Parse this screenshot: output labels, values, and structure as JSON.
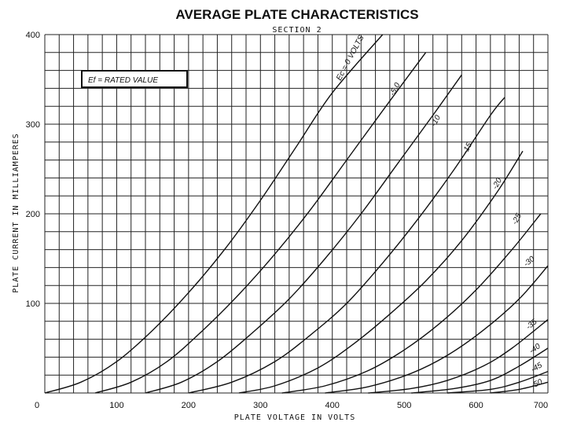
{
  "chart_data": {
    "type": "line",
    "title": "AVERAGE PLATE CHARACTERISTICS",
    "subtitle": "SECTION 2",
    "xlabel": "PLATE VOLTAGE IN VOLTS",
    "ylabel": "PLATE CURRENT IN MILLIAMPERES",
    "xlim": [
      0,
      700
    ],
    "ylim": [
      0,
      400
    ],
    "x_ticks": [
      "0",
      "100",
      "200",
      "300",
      "400",
      "500",
      "600",
      "700"
    ],
    "y_ticks": [
      "100",
      "200",
      "300",
      "400"
    ],
    "grid": true,
    "annotation": "Ef = RATED VALUE",
    "series": [
      {
        "name": "Ec = 0 VOLTS",
        "points": [
          [
            0,
            0
          ],
          [
            50,
            12
          ],
          [
            100,
            35
          ],
          [
            150,
            70
          ],
          [
            200,
            112
          ],
          [
            250,
            160
          ],
          [
            300,
            215
          ],
          [
            350,
            275
          ],
          [
            400,
            335
          ],
          [
            470,
            400
          ]
        ]
      },
      {
        "name": "-5.0",
        "points": [
          [
            70,
            0
          ],
          [
            120,
            12
          ],
          [
            170,
            35
          ],
          [
            220,
            70
          ],
          [
            270,
            110
          ],
          [
            320,
            155
          ],
          [
            370,
            205
          ],
          [
            420,
            260
          ],
          [
            470,
            315
          ],
          [
            530,
            380
          ]
        ]
      },
      {
        "name": "-10",
        "points": [
          [
            140,
            0
          ],
          [
            190,
            12
          ],
          [
            240,
            35
          ],
          [
            290,
            68
          ],
          [
            340,
            105
          ],
          [
            390,
            150
          ],
          [
            440,
            200
          ],
          [
            490,
            255
          ],
          [
            540,
            310
          ],
          [
            580,
            355
          ]
        ]
      },
      {
        "name": "-15",
        "points": [
          [
            200,
            0
          ],
          [
            260,
            12
          ],
          [
            320,
            35
          ],
          [
            370,
            65
          ],
          [
            420,
            100
          ],
          [
            470,
            145
          ],
          [
            520,
            195
          ],
          [
            570,
            250
          ],
          [
            620,
            310
          ],
          [
            640,
            330
          ]
        ]
      },
      {
        "name": "-20",
        "points": [
          [
            270,
            0
          ],
          [
            320,
            8
          ],
          [
            380,
            28
          ],
          [
            430,
            55
          ],
          [
            480,
            88
          ],
          [
            530,
            125
          ],
          [
            580,
            170
          ],
          [
            630,
            225
          ],
          [
            665,
            270
          ]
        ]
      },
      {
        "name": "-25",
        "points": [
          [
            330,
            0
          ],
          [
            390,
            8
          ],
          [
            450,
            25
          ],
          [
            500,
            48
          ],
          [
            550,
            78
          ],
          [
            600,
            115
          ],
          [
            650,
            160
          ],
          [
            690,
            200
          ]
        ]
      },
      {
        "name": "-30",
        "points": [
          [
            390,
            0
          ],
          [
            450,
            7
          ],
          [
            510,
            22
          ],
          [
            560,
            42
          ],
          [
            610,
            70
          ],
          [
            660,
            105
          ],
          [
            700,
            142
          ]
        ]
      },
      {
        "name": "-35",
        "points": [
          [
            450,
            0
          ],
          [
            510,
            5
          ],
          [
            560,
            14
          ],
          [
            610,
            30
          ],
          [
            650,
            50
          ],
          [
            700,
            82
          ]
        ]
      },
      {
        "name": "-40",
        "points": [
          [
            510,
            0
          ],
          [
            570,
            5
          ],
          [
            620,
            14
          ],
          [
            660,
            30
          ],
          [
            700,
            50
          ]
        ]
      },
      {
        "name": "-45",
        "points": [
          [
            560,
            0
          ],
          [
            620,
            4
          ],
          [
            660,
            12
          ],
          [
            700,
            24
          ]
        ]
      },
      {
        "name": "-50",
        "points": [
          [
            620,
            0
          ],
          [
            660,
            4
          ],
          [
            700,
            12
          ]
        ]
      }
    ]
  }
}
